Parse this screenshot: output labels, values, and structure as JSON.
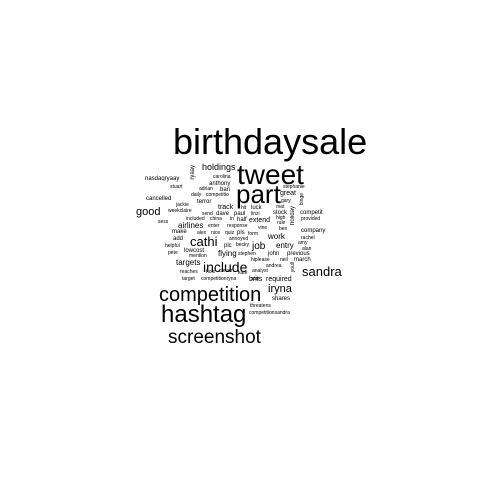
{
  "word_cloud": {
    "text_color": "#000000",
    "background_color": "#ffffff",
    "words": [
      {
        "text": "birthdaysale",
        "orientation": "horizontal"
      },
      {
        "text": "tweet",
        "orientation": "horizontal"
      },
      {
        "text": "part",
        "orientation": "horizontal"
      },
      {
        "text": "competition",
        "orientation": "horizontal"
      },
      {
        "text": "hashtag",
        "orientation": "horizontal"
      },
      {
        "text": "screenshot",
        "orientation": "horizontal"
      },
      {
        "text": "include",
        "orientation": "horizontal"
      },
      {
        "text": "sandra",
        "orientation": "horizontal"
      },
      {
        "text": "cathi",
        "orientation": "horizontal"
      },
      {
        "text": "iryna",
        "orientation": "horizontal"
      },
      {
        "text": "good",
        "orientation": "horizontal"
      },
      {
        "text": "holdings",
        "orientation": "horizontal"
      },
      {
        "text": "job",
        "orientation": "horizontal"
      },
      {
        "text": "work",
        "orientation": "horizontal"
      },
      {
        "text": "entry",
        "orientation": "horizontal"
      },
      {
        "text": "airlines",
        "orientation": "horizontal"
      },
      {
        "text": "flying",
        "orientation": "horizontal"
      },
      {
        "text": "targets",
        "orientation": "horizontal"
      },
      {
        "text": "brits",
        "orientation": "horizontal"
      },
      {
        "text": "required",
        "orientation": "horizontal"
      },
      {
        "text": "shares",
        "orientation": "horizontal"
      },
      {
        "text": "nasdaqryaay",
        "orientation": "horizontal"
      },
      {
        "text": "ryaay",
        "orientation": "vertical"
      },
      {
        "text": "carolina",
        "orientation": "horizontal"
      },
      {
        "text": "anthony",
        "orientation": "horizontal"
      },
      {
        "text": "stuart",
        "orientation": "horizontal"
      },
      {
        "text": "adrian",
        "orientation": "horizontal"
      },
      {
        "text": "ban",
        "orientation": "horizontal"
      },
      {
        "text": "daily",
        "orientation": "horizontal"
      },
      {
        "text": "competitio",
        "orientation": "horizontal"
      },
      {
        "text": "cancelled",
        "orientation": "horizontal"
      },
      {
        "text": "terror",
        "orientation": "horizontal"
      },
      {
        "text": "jackie",
        "orientation": "horizontal"
      },
      {
        "text": "track",
        "orientation": "horizontal"
      },
      {
        "text": "hit",
        "orientation": "horizontal"
      },
      {
        "text": "luck",
        "orientation": "horizontal"
      },
      {
        "text": "weekclaire",
        "orientation": "horizontal"
      },
      {
        "text": "send",
        "orientation": "horizontal"
      },
      {
        "text": "dave",
        "orientation": "horizontal"
      },
      {
        "text": "paul",
        "orientation": "horizontal"
      },
      {
        "text": "linzi",
        "orientation": "horizontal"
      },
      {
        "text": "included",
        "orientation": "horizontal"
      },
      {
        "text": "china",
        "orientation": "horizontal"
      },
      {
        "text": "in",
        "orientation": "horizontal"
      },
      {
        "text": "half",
        "orientation": "horizontal"
      },
      {
        "text": "extend",
        "orientation": "horizontal"
      },
      {
        "text": "sess",
        "orientation": "horizontal"
      },
      {
        "text": "enter",
        "orientation": "horizontal"
      },
      {
        "text": "response",
        "orientation": "horizontal"
      },
      {
        "text": "vine",
        "orientation": "horizontal"
      },
      {
        "text": "make",
        "orientation": "horizontal"
      },
      {
        "text": "alex",
        "orientation": "horizontal"
      },
      {
        "text": "nice",
        "orientation": "horizontal"
      },
      {
        "text": "quiz",
        "orientation": "horizontal"
      },
      {
        "text": "pls",
        "orientation": "horizontal"
      },
      {
        "text": "form",
        "orientation": "horizontal"
      },
      {
        "text": "add",
        "orientation": "horizontal"
      },
      {
        "text": "annoyed",
        "orientation": "horizontal"
      },
      {
        "text": "plc",
        "orientation": "horizontal"
      },
      {
        "text": "becky",
        "orientation": "horizontal"
      },
      {
        "text": "helpful",
        "orientation": "horizontal"
      },
      {
        "text": "lowcost",
        "orientation": "horizontal"
      },
      {
        "text": "pete",
        "orientation": "horizontal"
      },
      {
        "text": "mention",
        "orientation": "horizontal"
      },
      {
        "text": "stephen",
        "orientation": "horizontal"
      },
      {
        "text": "john",
        "orientation": "horizontal"
      },
      {
        "text": "previous",
        "orientation": "horizontal"
      },
      {
        "text": "hiplease",
        "orientation": "horizontal"
      },
      {
        "text": "neil",
        "orientation": "horizontal"
      },
      {
        "text": "march",
        "orientation": "horizontal"
      },
      {
        "text": "andrea",
        "orientation": "horizontal"
      },
      {
        "text": "reaches",
        "orientation": "horizontal"
      },
      {
        "text": "hols",
        "orientation": "horizontal"
      },
      {
        "text": "clever",
        "orientation": "horizontal"
      },
      {
        "text": "kate",
        "orientation": "horizontal"
      },
      {
        "text": "analyst",
        "orientation": "horizontal"
      },
      {
        "text": "target",
        "orientation": "horizontal"
      },
      {
        "text": "competitionryna",
        "orientation": "horizontal"
      },
      {
        "text": "star",
        "orientation": "horizontal"
      },
      {
        "text": "threatens",
        "orientation": "horizontal"
      },
      {
        "text": "competitionsandra",
        "orientation": "horizontal"
      },
      {
        "text": "stephanie",
        "orientation": "horizontal"
      },
      {
        "text": "great",
        "orientation": "horizontal"
      },
      {
        "text": "gary",
        "orientation": "horizontal"
      },
      {
        "text": "mat",
        "orientation": "horizontal"
      },
      {
        "text": "stock",
        "orientation": "horizontal"
      },
      {
        "text": "high",
        "orientation": "horizontal"
      },
      {
        "text": "rule",
        "orientation": "horizontal"
      },
      {
        "text": "ben",
        "orientation": "horizontal"
      },
      {
        "text": "competit",
        "orientation": "horizontal"
      },
      {
        "text": "provided",
        "orientation": "horizontal"
      },
      {
        "text": "company",
        "orientation": "horizontal"
      },
      {
        "text": "rachel",
        "orientation": "horizontal"
      },
      {
        "text": "amy",
        "orientation": "horizontal"
      },
      {
        "text": "alan",
        "orientation": "horizontal"
      },
      {
        "text": "binge",
        "orientation": "vertical"
      },
      {
        "text": "holiday",
        "orientation": "vertical"
      },
      {
        "text": "youll",
        "orientation": "vertical"
      }
    ]
  }
}
